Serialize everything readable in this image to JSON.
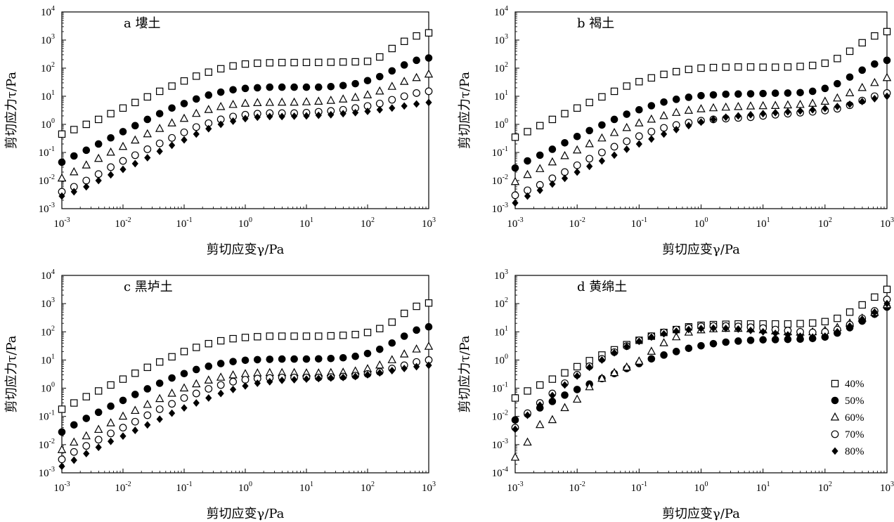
{
  "colors": {
    "ink": "#000000",
    "background": "#ffffff"
  },
  "chart_data": [
    {
      "type": "scatter",
      "title": "a 塿土",
      "xlabel": "剪切应变γ/Pa",
      "ylabel": "剪切应力τ/Pa",
      "xscale": "log",
      "yscale": "log",
      "xlim": [
        0.001,
        1000
      ],
      "ylim": [
        0.001,
        10000
      ],
      "x": [
        0.001,
        0.00158,
        0.00251,
        0.00398,
        0.00631,
        0.01,
        0.0158,
        0.0251,
        0.0398,
        0.0631,
        0.1,
        0.158,
        0.251,
        0.398,
        0.631,
        1,
        1.58,
        2.51,
        3.98,
        6.31,
        10,
        15.8,
        25.1,
        39.8,
        63.1,
        100,
        158,
        251,
        398,
        631,
        1000
      ],
      "series": [
        {
          "name": "40%",
          "marker": "open-square",
          "values": [
            0.45,
            0.65,
            1.0,
            1.5,
            2.4,
            3.8,
            6.0,
            9.5,
            15,
            23,
            35,
            52,
            72,
            95,
            120,
            140,
            150,
            155,
            158,
            158,
            160,
            160,
            162,
            165,
            168,
            175,
            250,
            500,
            900,
            1400,
            1800
          ]
        },
        {
          "name": "50%",
          "marker": "filled-circle",
          "values": [
            0.045,
            0.075,
            0.12,
            0.2,
            0.33,
            0.55,
            0.9,
            1.5,
            2.4,
            3.8,
            5.5,
            8,
            11,
            14,
            17,
            19,
            20,
            21,
            21,
            21,
            21,
            21,
            22,
            24,
            28,
            36,
            50,
            80,
            130,
            190,
            230
          ]
        },
        {
          "name": "60%",
          "marker": "open-triangle",
          "values": [
            0.012,
            0.02,
            0.035,
            0.06,
            0.1,
            0.16,
            0.27,
            0.45,
            0.7,
            1.1,
            1.6,
            2.4,
            3.3,
            4.2,
            5,
            5.5,
            5.8,
            5.9,
            6,
            6,
            6.2,
            6.5,
            7,
            7.8,
            9,
            11,
            15,
            22,
            33,
            45,
            60
          ]
        },
        {
          "name": "70%",
          "marker": "open-circle",
          "values": [
            0.004,
            0.006,
            0.01,
            0.017,
            0.03,
            0.05,
            0.08,
            0.13,
            0.21,
            0.33,
            0.52,
            0.8,
            1.1,
            1.5,
            1.9,
            2.2,
            2.4,
            2.5,
            2.5,
            2.5,
            2.6,
            2.8,
            3.0,
            3.3,
            3.8,
            4.5,
            5.5,
            7.5,
            10,
            13,
            15
          ]
        },
        {
          "name": "80%",
          "marker": "filled-diamond",
          "values": [
            0.0028,
            0.004,
            0.006,
            0.01,
            0.016,
            0.025,
            0.04,
            0.065,
            0.11,
            0.18,
            0.28,
            0.45,
            0.7,
            1.0,
            1.3,
            1.6,
            1.8,
            1.9,
            1.9,
            1.95,
            2.0,
            2.1,
            2.2,
            2.4,
            2.6,
            2.9,
            3.3,
            3.8,
            4.5,
            5.3,
            6.0
          ]
        }
      ]
    },
    {
      "type": "scatter",
      "title": "b 褐土",
      "xlabel": "剪切应变γ/Pa",
      "ylabel": "剪切应力τ/Pa",
      "xscale": "log",
      "yscale": "log",
      "xlim": [
        0.001,
        1000
      ],
      "ylim": [
        0.001,
        10000
      ],
      "x": [
        0.001,
        0.00158,
        0.00251,
        0.00398,
        0.00631,
        0.01,
        0.0158,
        0.0251,
        0.0398,
        0.0631,
        0.1,
        0.158,
        0.251,
        0.398,
        0.631,
        1,
        1.58,
        2.51,
        3.98,
        6.31,
        10,
        15.8,
        25.1,
        39.8,
        63.1,
        100,
        158,
        251,
        398,
        631,
        1000
      ],
      "series": [
        {
          "name": "40%",
          "marker": "open-square",
          "values": [
            0.35,
            0.55,
            0.9,
            1.5,
            2.4,
            3.8,
            6.0,
            9.5,
            15,
            23,
            33,
            45,
            60,
            75,
            90,
            100,
            105,
            108,
            110,
            110,
            108,
            108,
            110,
            115,
            125,
            150,
            220,
            400,
            800,
            1400,
            2000
          ]
        },
        {
          "name": "50%",
          "marker": "filled-circle",
          "values": [
            0.028,
            0.05,
            0.08,
            0.13,
            0.22,
            0.37,
            0.6,
            0.95,
            1.5,
            2.3,
            3.3,
            4.6,
            6.2,
            7.8,
            9.2,
            10.5,
            11.2,
            11.8,
            12,
            12.2,
            12.5,
            12.8,
            13,
            13.5,
            15,
            19,
            28,
            48,
            85,
            140,
            190
          ]
        },
        {
          "name": "60%",
          "marker": "open-triangle",
          "values": [
            0.009,
            0.016,
            0.026,
            0.045,
            0.075,
            0.12,
            0.2,
            0.32,
            0.5,
            0.75,
            1.1,
            1.5,
            2.0,
            2.6,
            3.1,
            3.5,
            3.8,
            4.0,
            4.2,
            4.4,
            4.5,
            4.6,
            4.8,
            5.0,
            5.5,
            6.5,
            8.5,
            13,
            20,
            30,
            45
          ]
        },
        {
          "name": "70%",
          "marker": "open-circle",
          "values": [
            0.003,
            0.0045,
            0.007,
            0.012,
            0.02,
            0.035,
            0.06,
            0.1,
            0.16,
            0.25,
            0.38,
            0.55,
            0.75,
            0.95,
            1.15,
            1.35,
            1.5,
            1.6,
            1.7,
            1.8,
            2.0,
            2.2,
            2.4,
            2.6,
            2.8,
            3.1,
            3.6,
            4.8,
            7,
            10,
            13
          ]
        },
        {
          "name": "80%",
          "marker": "filled-diamond",
          "values": [
            0.0016,
            0.0028,
            0.0045,
            0.0075,
            0.012,
            0.02,
            0.032,
            0.05,
            0.08,
            0.13,
            0.2,
            0.3,
            0.45,
            0.65,
            0.9,
            1.2,
            1.5,
            1.8,
            2.0,
            2.2,
            2.4,
            2.6,
            2.8,
            3.0,
            3.3,
            3.7,
            4.3,
            5.2,
            6.5,
            8.2,
            10
          ]
        }
      ]
    },
    {
      "type": "scatter",
      "title": "c 黑垆土",
      "xlabel": "剪切应变γ/Pa",
      "ylabel": "剪切应力τ/Pa",
      "xscale": "log",
      "yscale": "log",
      "xlim": [
        0.001,
        1000
      ],
      "ylim": [
        0.001,
        10000
      ],
      "x": [
        0.001,
        0.00158,
        0.00251,
        0.00398,
        0.00631,
        0.01,
        0.0158,
        0.0251,
        0.0398,
        0.0631,
        0.1,
        0.158,
        0.251,
        0.398,
        0.631,
        1,
        1.58,
        2.51,
        3.98,
        6.31,
        10,
        15.8,
        25.1,
        39.8,
        63.1,
        100,
        158,
        251,
        398,
        631,
        1000
      ],
      "series": [
        {
          "name": "40%",
          "marker": "open-square",
          "values": [
            0.18,
            0.3,
            0.5,
            0.8,
            1.3,
            2.1,
            3.4,
            5.5,
            8.5,
            13,
            20,
            28,
            38,
            48,
            57,
            63,
            67,
            70,
            70,
            70,
            70,
            70,
            72,
            75,
            80,
            95,
            130,
            220,
            450,
            800,
            1050
          ]
        },
        {
          "name": "50%",
          "marker": "filled-circle",
          "values": [
            0.028,
            0.05,
            0.085,
            0.14,
            0.23,
            0.37,
            0.6,
            0.95,
            1.5,
            2.3,
            3.3,
            4.6,
            6.0,
            7.5,
            8.8,
            9.8,
            10.3,
            10.6,
            10.8,
            10.8,
            10.8,
            11,
            11.3,
            12,
            13.5,
            17,
            24,
            40,
            70,
            115,
            150
          ]
        },
        {
          "name": "60%",
          "marker": "open-triangle",
          "values": [
            0.0065,
            0.012,
            0.02,
            0.034,
            0.058,
            0.1,
            0.16,
            0.26,
            0.42,
            0.65,
            1.0,
            1.4,
            1.9,
            2.4,
            2.9,
            3.2,
            3.4,
            3.5,
            3.5,
            3.5,
            3.4,
            3.4,
            3.5,
            3.6,
            4.0,
            4.8,
            6.5,
            10,
            16,
            24,
            30
          ]
        },
        {
          "name": "70%",
          "marker": "open-circle",
          "values": [
            0.003,
            0.0055,
            0.009,
            0.015,
            0.025,
            0.04,
            0.065,
            0.11,
            0.18,
            0.28,
            0.45,
            0.65,
            0.95,
            1.3,
            1.7,
            2.0,
            2.2,
            2.3,
            2.4,
            2.4,
            2.4,
            2.4,
            2.5,
            2.6,
            2.8,
            3.2,
            3.8,
            5.0,
            6.5,
            8.5,
            10
          ]
        },
        {
          "name": "80%",
          "marker": "filled-diamond",
          "values": [
            0.0017,
            0.0028,
            0.0048,
            0.008,
            0.013,
            0.02,
            0.032,
            0.05,
            0.08,
            0.13,
            0.2,
            0.3,
            0.45,
            0.65,
            0.9,
            1.2,
            1.5,
            1.7,
            1.9,
            2.0,
            2.1,
            2.2,
            2.3,
            2.4,
            2.6,
            3.0,
            3.5,
            4.2,
            5.0,
            5.8,
            6.5
          ]
        }
      ]
    },
    {
      "type": "scatter",
      "title": "d 黄绵土",
      "xlabel": "剪切应变γ/Pa",
      "ylabel": "剪切应力τ/Pa",
      "xscale": "log",
      "yscale": "log",
      "xlim": [
        0.001,
        1000
      ],
      "ylim": [
        0.0001,
        1000
      ],
      "legend_position": "bottom-right",
      "x": [
        0.001,
        0.00158,
        0.00251,
        0.00398,
        0.00631,
        0.01,
        0.0158,
        0.0251,
        0.0398,
        0.0631,
        0.1,
        0.158,
        0.251,
        0.398,
        0.631,
        1,
        1.58,
        2.51,
        3.98,
        6.31,
        10,
        15.8,
        25.1,
        39.8,
        63.1,
        100,
        158,
        251,
        398,
        631,
        1000
      ],
      "series": [
        {
          "name": "40%",
          "marker": "open-square",
          "values": [
            0.045,
            0.08,
            0.13,
            0.21,
            0.35,
            0.58,
            0.95,
            1.5,
            2.3,
            3.5,
            5.0,
            7.0,
            9.5,
            12,
            15,
            17,
            18,
            18.5,
            19,
            19,
            19,
            19,
            19,
            19.5,
            20.5,
            23,
            30,
            50,
            90,
            170,
            320
          ]
        },
        {
          "name": "50%",
          "marker": "filled-circle",
          "values": [
            0.0075,
            0.012,
            0.02,
            0.034,
            0.057,
            0.09,
            0.14,
            0.22,
            0.33,
            0.5,
            0.75,
            1.1,
            1.5,
            2.0,
            2.6,
            3.2,
            3.8,
            4.3,
            4.7,
            5.0,
            5.2,
            5.3,
            5.4,
            5.5,
            5.8,
            6.5,
            9,
            14,
            24,
            42,
            75
          ]
        },
        {
          "name": "60%",
          "marker": "open-triangle",
          "values": [
            0.00035,
            0.0012,
            0.005,
            0.0075,
            0.02,
            0.04,
            0.11,
            0.22,
            0.35,
            0.55,
            0.9,
            2.0,
            4.0,
            6.5,
            9.5,
            11.5,
            12.5,
            13,
            13,
            12.5,
            11.5,
            10.5,
            9.8,
            9.5,
            9.8,
            11,
            14,
            20,
            30,
            48,
            90
          ]
        },
        {
          "name": "70%",
          "marker": "open-circle",
          "values": [
            0.004,
            0.013,
            0.03,
            0.065,
            0.15,
            0.3,
            0.6,
            1.1,
            1.9,
            3.1,
            5.0,
            7.0,
            9.5,
            12,
            14,
            15.5,
            16,
            16,
            15.5,
            14.5,
            13.5,
            12,
            11,
            10,
            9.5,
            10,
            12,
            18,
            30,
            55,
            140
          ]
        },
        {
          "name": "80%",
          "marker": "filled-diamond",
          "values": [
            0.0035,
            0.011,
            0.025,
            0.055,
            0.13,
            0.27,
            0.55,
            1.0,
            1.8,
            3.0,
            4.6,
            6.5,
            8.5,
            10.5,
            12,
            13,
            13.5,
            13.2,
            12.5,
            11.2,
            10,
            8.8,
            7.8,
            7.0,
            6.5,
            7.0,
            10,
            16,
            28,
            50,
            100
          ]
        }
      ]
    }
  ]
}
